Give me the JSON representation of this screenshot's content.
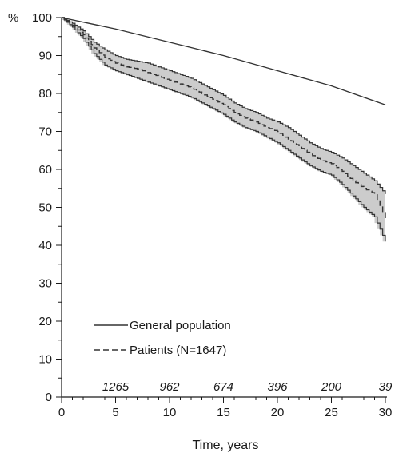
{
  "chart_data": {
    "type": "line",
    "ylabel_unit": "%",
    "xlabel": "Time, years",
    "xlim": [
      0,
      30
    ],
    "ylim": [
      0,
      100
    ],
    "x_ticks": [
      0,
      5,
      10,
      15,
      20,
      25,
      30
    ],
    "y_ticks": [
      0,
      10,
      20,
      30,
      40,
      50,
      60,
      70,
      80,
      90,
      100
    ],
    "grid": false,
    "legend_position": "bottom-left",
    "number_at_risk": [
      {
        "x": 5,
        "label": "1265"
      },
      {
        "x": 10,
        "label": "962"
      },
      {
        "x": 15,
        "label": "674"
      },
      {
        "x": 20,
        "label": "396"
      },
      {
        "x": 25,
        "label": "200"
      },
      {
        "x": 30,
        "label": "39"
      }
    ],
    "series": [
      {
        "name": "General population",
        "style": "solid",
        "color": "#333333",
        "x": [
          0,
          5,
          10,
          15,
          20,
          25,
          30
        ],
        "y": [
          100,
          97,
          93.5,
          90,
          86,
          82,
          77
        ]
      },
      {
        "name": "Patients (N=1647)",
        "style": "dashed",
        "color": "#333333",
        "x": [
          0,
          1,
          2,
          3,
          4,
          5,
          6,
          7,
          8,
          9,
          10,
          11,
          12,
          13,
          14,
          15,
          16,
          17,
          18,
          19,
          20,
          21,
          22,
          23,
          24,
          25,
          26,
          27,
          28,
          29,
          30
        ],
        "y": [
          100,
          98,
          95.5,
          92,
          89.5,
          88,
          87,
          86.5,
          85.5,
          84.5,
          83.5,
          82.5,
          81.5,
          80,
          78.5,
          77,
          75,
          73.5,
          72.5,
          71,
          70,
          68,
          66,
          64,
          62.5,
          61.5,
          59.5,
          57,
          55,
          53.5,
          47
        ],
        "ci_lower": [
          100,
          97.5,
          94.5,
          90.5,
          87.5,
          86,
          85,
          84,
          83,
          82,
          81,
          80,
          79,
          77.5,
          76,
          74.5,
          72.5,
          71,
          70,
          68.5,
          67,
          65,
          63,
          61,
          59.5,
          58.5,
          56,
          53,
          50,
          47.5,
          41
        ],
        "ci_upper": [
          100,
          98.5,
          96.5,
          93.5,
          91.5,
          90,
          89,
          88.5,
          88,
          87,
          86,
          85,
          84,
          82.5,
          81,
          79.5,
          77.5,
          76,
          75,
          73.5,
          72.5,
          71,
          69,
          67,
          65.5,
          64.5,
          63,
          61,
          59,
          57,
          53.5
        ]
      }
    ],
    "ci_fill_color": "#cccccc"
  }
}
